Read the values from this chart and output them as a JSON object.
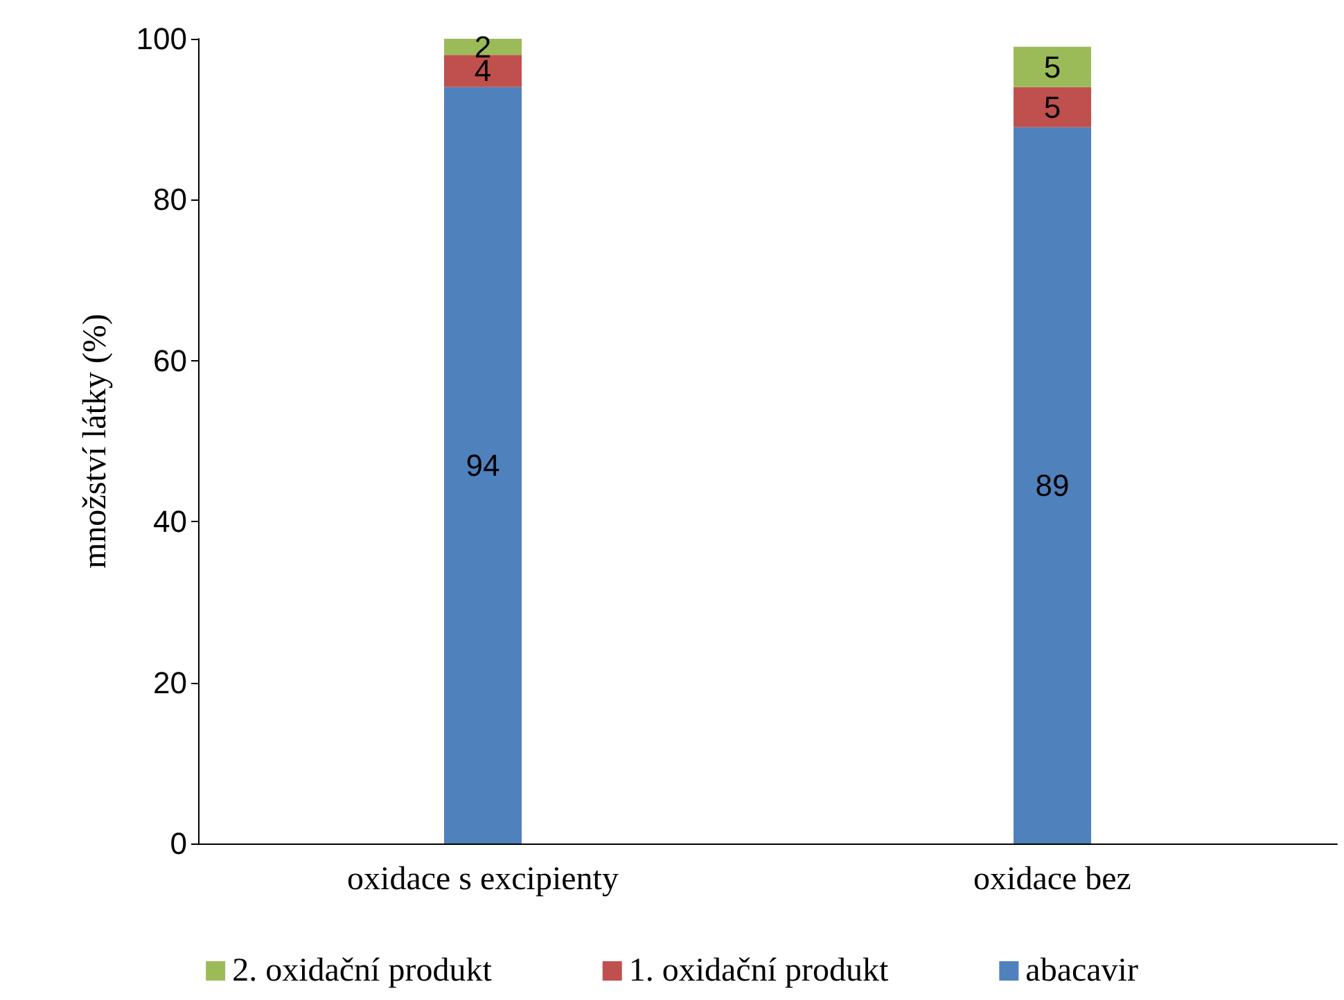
{
  "chart_data": {
    "type": "bar",
    "stacked": true,
    "ylabel": "množství látky (%)",
    "categories": [
      "oxidace s excipienty",
      "oxidace bez"
    ],
    "series": [
      {
        "name": "abacavir",
        "color": "#4f81bd",
        "values": [
          94,
          89
        ]
      },
      {
        "name": "1. oxidační produkt",
        "color": "#c0504d",
        "values": [
          4,
          5
        ]
      },
      {
        "name": "2. oxidační produkt",
        "color": "#9bbb59",
        "values": [
          2,
          5
        ]
      }
    ],
    "ylim": [
      0,
      100
    ],
    "yticks": [
      0,
      20,
      40,
      60,
      80,
      100
    ],
    "grid": false,
    "legend": "bottom",
    "data_labels": true
  }
}
